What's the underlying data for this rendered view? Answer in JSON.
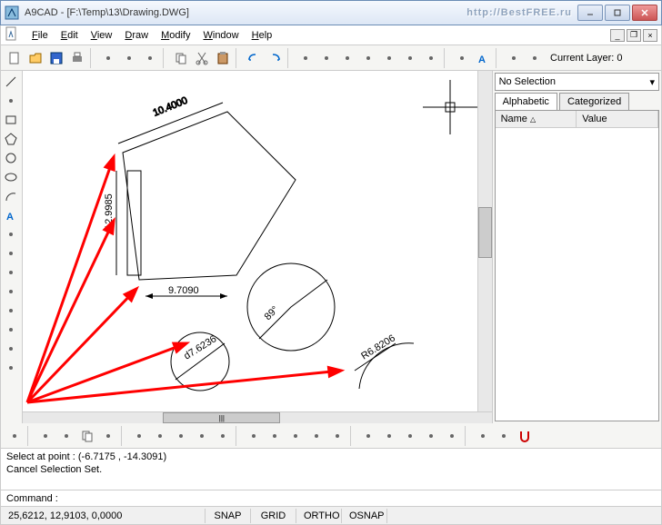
{
  "title": "A9CAD - [F:\\Temp\\13\\Drawing.DWG]",
  "watermark": "http://BestFREE.ru",
  "menus": [
    "File",
    "Edit",
    "View",
    "Draw",
    "Modify",
    "Window",
    "Help"
  ],
  "toolbar_label": "Current Layer: 0",
  "rightpanel": {
    "selection": "No Selection",
    "tabs": [
      "Alphabetic",
      "Categorized"
    ],
    "col_name": "Name",
    "col_value": "Value"
  },
  "cmd_lines": [
    "Select at point : (-6.7175 , -14.3091)",
    "Cancel Selection Set."
  ],
  "cmd_prompt": "Command : ",
  "status": {
    "coords": "25,6212, 12,9103, 0,0000",
    "snap": "SNAP",
    "grid": "GRID",
    "ortho": "ORTHO",
    "osnap": "OSNAP"
  },
  "drawing": {
    "dims": {
      "d1": "10.4000",
      "d2": "12.9985",
      "d3": "9.7090",
      "d4": "d7.6236",
      "d5": "R6.8206",
      "d6": "89°"
    },
    "colors": {
      "arrow": "#ff0000",
      "line": "#000000"
    }
  },
  "icons": {
    "top": [
      "new",
      "open",
      "save",
      "print",
      "layers",
      "poly",
      "spline",
      "copy",
      "cut",
      "paste",
      "undo",
      "redo",
      "zoom-in",
      "zoom-out",
      "zoom-win",
      "zoom-ext",
      "zoom-prev",
      "zoom-all",
      "pan",
      "dist",
      "text-a",
      "color",
      "layers2"
    ],
    "left": [
      "line",
      "polyline",
      "rect",
      "polygon",
      "circle",
      "ellipse",
      "arc",
      "text",
      "mtext",
      "hatch",
      "point",
      "dim-lin",
      "dim-ang",
      "dim-rad",
      "image",
      "block"
    ],
    "bottom": [
      "sel",
      "erase",
      "move",
      "copy",
      "offset",
      "rotate",
      "mirror",
      "array",
      "fillet",
      "chamfer",
      "trim",
      "extend",
      "break",
      "scale",
      "explode",
      "arrow",
      "measure",
      "leader",
      "ortho",
      "lock",
      "snap",
      "osnap",
      "magnet"
    ]
  }
}
